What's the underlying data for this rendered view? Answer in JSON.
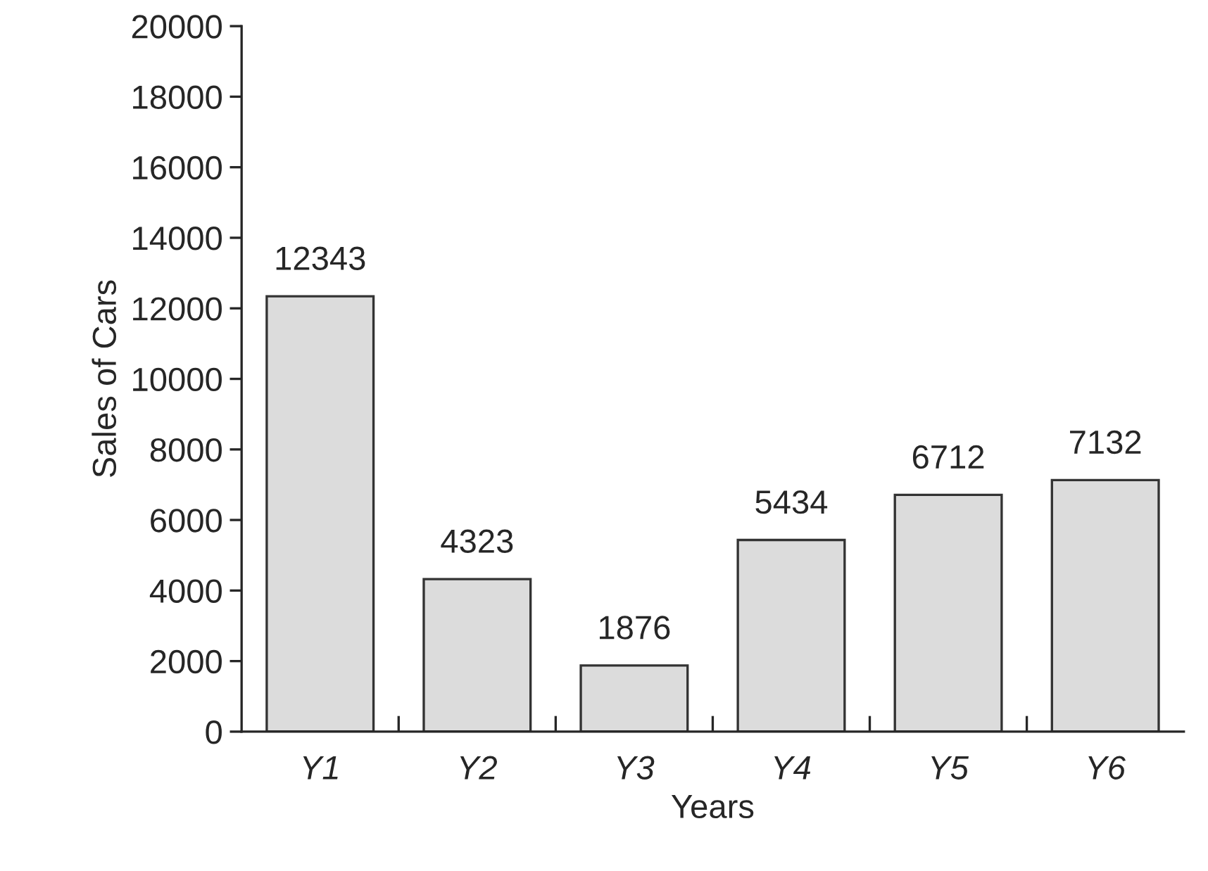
{
  "chart_data": {
    "type": "bar",
    "xlabel": "Years",
    "ylabel": "Sales of Cars",
    "categories": [
      "Y1",
      "Y2",
      "Y3",
      "Y4",
      "Y5",
      "Y6"
    ],
    "values": [
      12343,
      4323,
      1876,
      5434,
      6712,
      7132
    ],
    "color": "#dcdcdc",
    "ylim": [
      0,
      20000
    ],
    "yticks": [
      0,
      2000,
      4000,
      6000,
      8000,
      10000,
      12000,
      14000,
      16000,
      18000,
      20000
    ],
    "data_labels": true,
    "grid": false,
    "legend": false
  }
}
